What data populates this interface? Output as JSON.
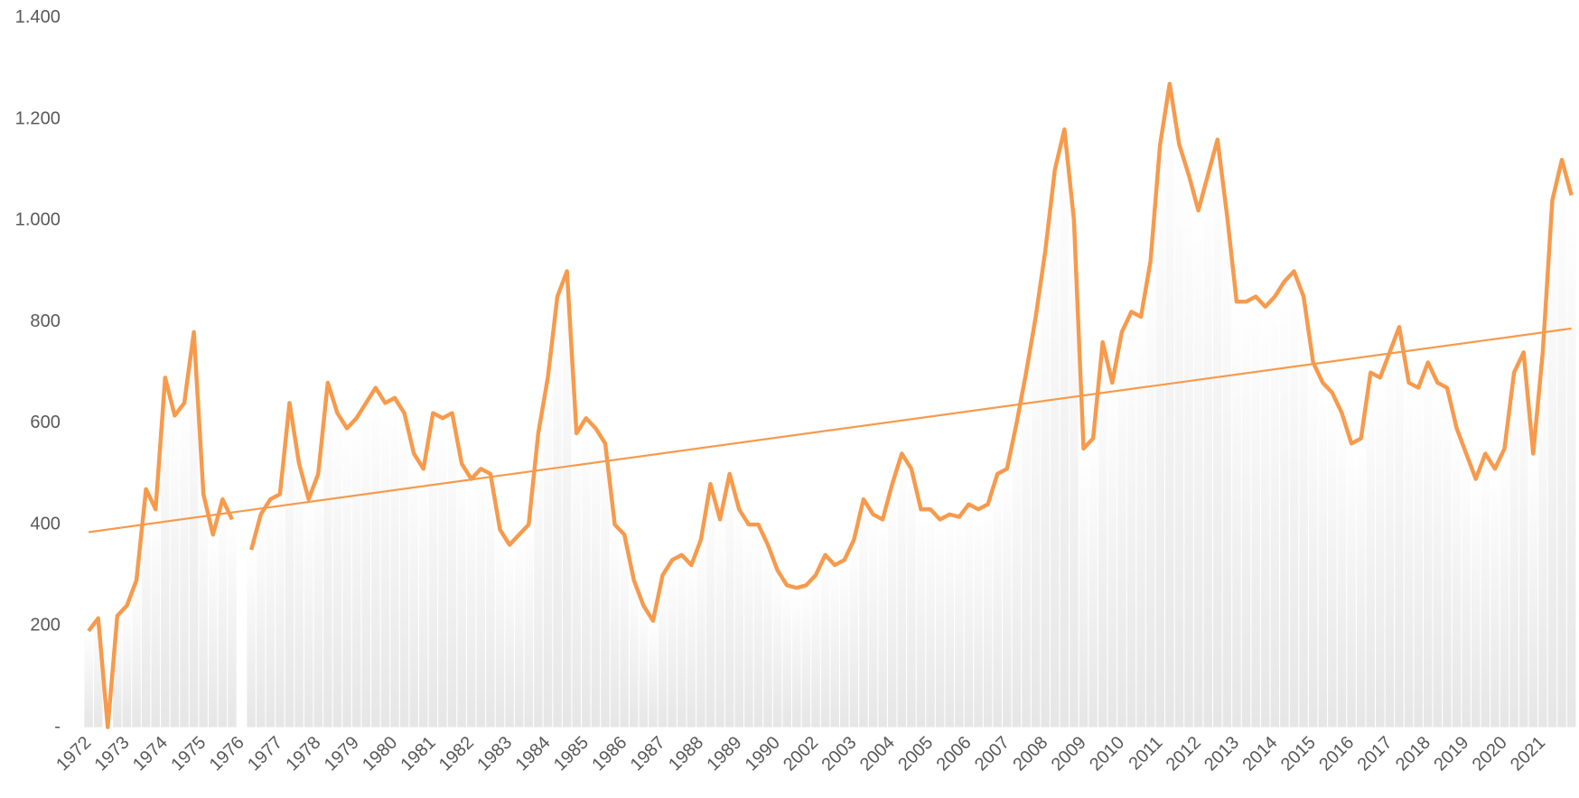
{
  "chart_data": {
    "type": "line",
    "categories": [
      "1972",
      null,
      null,
      null,
      "1973",
      null,
      null,
      null,
      "1974",
      null,
      null,
      null,
      "1975",
      null,
      null,
      null,
      "1976",
      null,
      null,
      null,
      "1977",
      null,
      null,
      null,
      "1978",
      null,
      null,
      null,
      "1979",
      null,
      null,
      null,
      "1980",
      null,
      null,
      null,
      "1981",
      null,
      null,
      null,
      "1982",
      null,
      null,
      null,
      "1983",
      null,
      null,
      null,
      "1984",
      null,
      null,
      null,
      "1985",
      null,
      null,
      null,
      "1986",
      null,
      null,
      null,
      "1987",
      null,
      null,
      null,
      "1988",
      null,
      null,
      null,
      "1989",
      null,
      null,
      null,
      "1990",
      null,
      null,
      null,
      "2002",
      null,
      null,
      null,
      "2003",
      null,
      null,
      null,
      "2004",
      null,
      null,
      null,
      "2005",
      null,
      null,
      null,
      "2006",
      null,
      null,
      null,
      "2007",
      null,
      null,
      null,
      "2008",
      null,
      null,
      null,
      "2009",
      null,
      null,
      null,
      "2010",
      null,
      null,
      null,
      "2011",
      null,
      null,
      null,
      "2012",
      null,
      null,
      null,
      "2013",
      null,
      null,
      null,
      "2014",
      null,
      null,
      null,
      "2015",
      null,
      null,
      null,
      "2016",
      null,
      null,
      null,
      "2017",
      null,
      null,
      null,
      "2018",
      null,
      null,
      null,
      "2019",
      null,
      null,
      null,
      "2020",
      null,
      null,
      null,
      "2021",
      null,
      null,
      null
    ],
    "series": [
      {
        "color": "#f79a4c",
        "values": [
          190,
          215,
          0,
          220,
          240,
          290,
          470,
          430,
          690,
          615,
          640,
          780,
          460,
          380,
          450,
          410,
          null,
          350,
          420,
          450,
          460,
          640,
          520,
          450,
          500,
          680,
          620,
          590,
          610,
          640,
          670,
          640,
          650,
          620,
          540,
          510,
          620,
          610,
          620,
          520,
          490,
          510,
          500,
          390,
          360,
          380,
          400,
          580,
          690,
          850,
          900,
          580,
          610,
          590,
          560,
          400,
          380,
          290,
          240,
          210,
          300,
          330,
          340,
          320,
          370,
          480,
          410,
          500,
          430,
          400,
          400,
          360,
          310,
          280,
          275,
          280,
          300,
          340,
          320,
          330,
          370,
          450,
          420,
          410,
          480,
          540,
          510,
          430,
          430,
          410,
          420,
          415,
          440,
          430,
          440,
          500,
          510,
          600,
          700,
          810,
          940,
          1100,
          1180,
          1000,
          550,
          570,
          760,
          680,
          780,
          820,
          810,
          920,
          1150,
          1270,
          1150,
          1090,
          1020,
          1090,
          1160,
          1010,
          840,
          840,
          850,
          830,
          850,
          880,
          900,
          850,
          720,
          680,
          660,
          620,
          560,
          570,
          700,
          690,
          740,
          790,
          680,
          670,
          720,
          680,
          670,
          590,
          540,
          490,
          540,
          510,
          550,
          700,
          740,
          540,
          740,
          1040,
          1120,
          1050
        ]
      }
    ],
    "trendline": [
      385,
      787
    ],
    "trend_color": "#f79a4c",
    "bar_color": "#e9e9e9",
    "ylim": [
      0,
      1400
    ],
    "yticks": [
      {
        "value": 0,
        "label": "-"
      },
      200,
      400,
      600,
      800,
      {
        "value": 1000,
        "label": "1.000"
      },
      {
        "value": 1200,
        "label": "1.200"
      },
      {
        "value": 1400,
        "label": "1.400"
      }
    ]
  }
}
